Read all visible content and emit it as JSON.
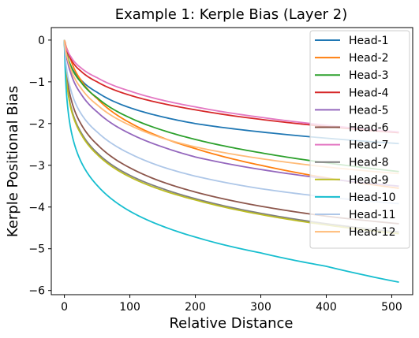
{
  "chart_data": {
    "type": "line",
    "title": "Example 1: Kerple Bias (Layer 2)",
    "xlabel": "Relative Distance",
    "ylabel": "Kerple Positional Bias",
    "xlim": [
      -20,
      532
    ],
    "ylim": [
      -6.1,
      0.3
    ],
    "xticks": [
      0,
      100,
      200,
      300,
      400,
      500
    ],
    "yticks": [
      0,
      -1,
      -2,
      -3,
      -4,
      -5,
      -6
    ],
    "legend_position": "top-right",
    "grid": false,
    "series": [
      {
        "name": "Head-1",
        "color": "#1f77b4",
        "x": [
          0,
          1,
          5,
          10,
          25,
          50,
          100,
          150,
          200,
          300,
          400,
          511
        ],
        "y": [
          0,
          -0.14,
          -0.42,
          -0.62,
          -0.95,
          -1.25,
          -1.62,
          -1.84,
          -2.0,
          -2.2,
          -2.35,
          -2.48
        ]
      },
      {
        "name": "Head-2",
        "color": "#ff7f0e",
        "x": [
          0,
          1,
          5,
          10,
          25,
          50,
          100,
          150,
          200,
          300,
          400,
          511
        ],
        "y": [
          0,
          -0.04,
          -0.25,
          -0.48,
          -0.95,
          -1.4,
          -1.98,
          -2.34,
          -2.6,
          -3.0,
          -3.3,
          -3.55
        ]
      },
      {
        "name": "Head-3",
        "color": "#2ca02c",
        "x": [
          0,
          1,
          5,
          10,
          25,
          50,
          100,
          150,
          200,
          300,
          400,
          511
        ],
        "y": [
          0,
          -0.11,
          -0.4,
          -0.62,
          -1.0,
          -1.38,
          -1.86,
          -2.16,
          -2.38,
          -2.7,
          -2.94,
          -3.15
        ]
      },
      {
        "name": "Head-4",
        "color": "#d62728",
        "x": [
          0,
          1,
          5,
          10,
          25,
          50,
          100,
          150,
          200,
          300,
          400,
          511
        ],
        "y": [
          0,
          -0.09,
          -0.3,
          -0.46,
          -0.74,
          -1.0,
          -1.32,
          -1.52,
          -1.67,
          -1.9,
          -2.07,
          -2.22
        ]
      },
      {
        "name": "Head-5",
        "color": "#9467bd",
        "x": [
          0,
          1,
          5,
          10,
          25,
          50,
          100,
          150,
          200,
          300,
          400,
          511
        ],
        "y": [
          0,
          -0.15,
          -0.52,
          -0.8,
          -1.28,
          -1.72,
          -2.24,
          -2.56,
          -2.8,
          -3.1,
          -3.32,
          -3.5
        ]
      },
      {
        "name": "Head-6",
        "color": "#8c564b",
        "x": [
          0,
          1,
          5,
          10,
          25,
          50,
          100,
          150,
          200,
          300,
          400,
          511
        ],
        "y": [
          0,
          -0.35,
          -1.0,
          -1.4,
          -2.0,
          -2.5,
          -3.06,
          -3.4,
          -3.64,
          -3.98,
          -4.22,
          -4.4
        ]
      },
      {
        "name": "Head-7",
        "color": "#e377c2",
        "x": [
          0,
          1,
          5,
          10,
          25,
          50,
          100,
          150,
          200,
          300,
          400,
          511
        ],
        "y": [
          0,
          -0.08,
          -0.26,
          -0.4,
          -0.66,
          -0.9,
          -1.22,
          -1.44,
          -1.6,
          -1.85,
          -2.04,
          -2.2
        ]
      },
      {
        "name": "Head-8",
        "color": "#7f7f7f",
        "x": [
          0,
          1,
          5,
          10,
          25,
          50,
          100,
          150,
          200,
          300,
          400,
          511
        ],
        "y": [
          0,
          -0.42,
          -1.16,
          -1.6,
          -2.2,
          -2.7,
          -3.24,
          -3.56,
          -3.8,
          -4.15,
          -4.4,
          -4.6
        ]
      },
      {
        "name": "Head-9",
        "color": "#bcbd22",
        "x": [
          0,
          1,
          5,
          10,
          25,
          50,
          100,
          150,
          200,
          300,
          400,
          511
        ],
        "y": [
          0,
          -0.44,
          -1.2,
          -1.64,
          -2.24,
          -2.74,
          -3.28,
          -3.6,
          -3.83,
          -4.18,
          -4.43,
          -4.64
        ]
      },
      {
        "name": "Head-10",
        "color": "#17becf",
        "x": [
          0,
          1,
          5,
          10,
          25,
          50,
          100,
          150,
          200,
          300,
          400,
          511
        ],
        "y": [
          0,
          -0.6,
          -1.6,
          -2.15,
          -2.9,
          -3.48,
          -4.1,
          -4.46,
          -4.72,
          -5.1,
          -5.42,
          -5.8
        ]
      },
      {
        "name": "Head-11",
        "color": "#aec7e8",
        "x": [
          0,
          1,
          5,
          10,
          25,
          50,
          100,
          150,
          200,
          300,
          400,
          511
        ],
        "y": [
          0,
          -0.3,
          -0.85,
          -1.2,
          -1.75,
          -2.2,
          -2.72,
          -3.04,
          -3.26,
          -3.56,
          -3.76,
          -3.92
        ]
      },
      {
        "name": "Head-12",
        "color": "#ffbb78",
        "x": [
          0,
          1,
          5,
          10,
          25,
          50,
          100,
          150,
          200,
          300,
          400,
          511
        ],
        "y": [
          0,
          -0.12,
          -0.45,
          -0.7,
          -1.14,
          -1.55,
          -2.04,
          -2.35,
          -2.56,
          -2.84,
          -3.04,
          -3.2
        ]
      }
    ]
  }
}
